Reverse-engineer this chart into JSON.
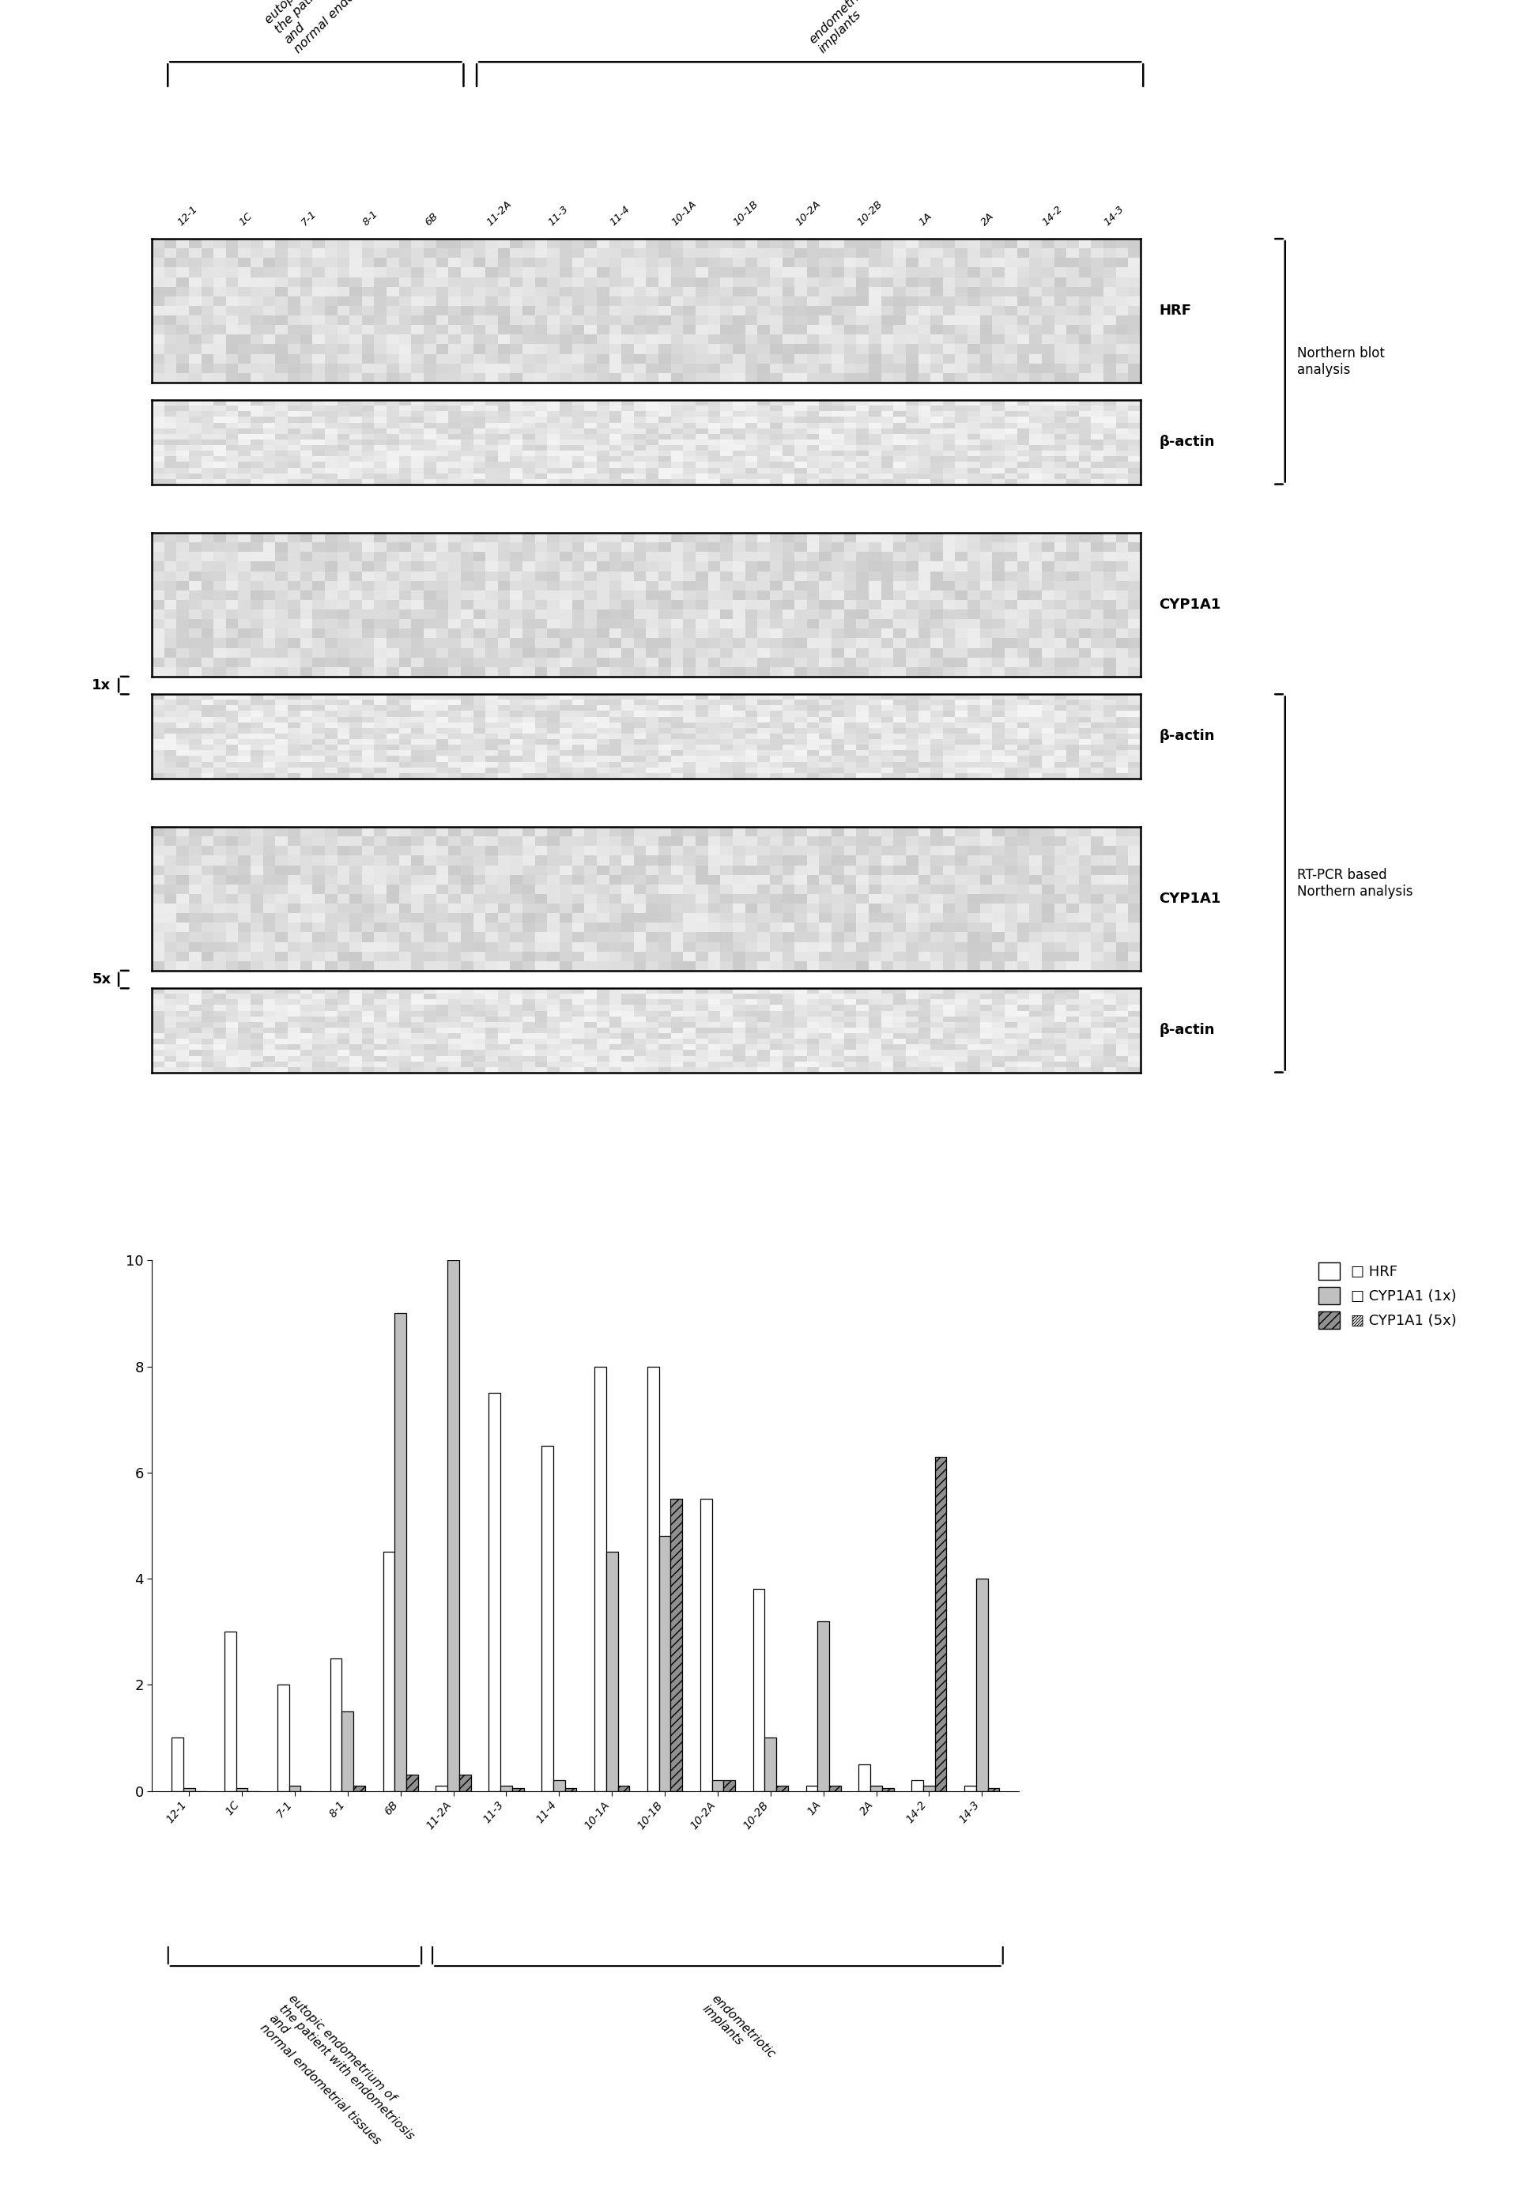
{
  "categories": [
    "12-1",
    "1C",
    "7-1",
    "8-1",
    "6B",
    "11-2A",
    "11-3",
    "11-4",
    "10-1A",
    "10-1B",
    "10-2A",
    "10-2B",
    "1A",
    "2A",
    "14-2",
    "14-3"
  ],
  "HRF": [
    1.0,
    3.0,
    2.0,
    2.5,
    4.5,
    0.1,
    7.5,
    6.5,
    8.0,
    8.0,
    5.5,
    3.8,
    0.1,
    0.5,
    0.2,
    0.1
  ],
  "CYP1A1_1x": [
    0.05,
    0.05,
    0.1,
    1.5,
    9.0,
    10.0,
    0.1,
    0.2,
    4.5,
    4.8,
    0.2,
    1.0,
    3.2,
    0.1,
    0.1,
    4.0
  ],
  "CYP1A1_5x": [
    0.0,
    0.0,
    0.0,
    0.1,
    0.3,
    0.3,
    0.05,
    0.05,
    0.1,
    5.5,
    0.2,
    0.1,
    0.1,
    0.05,
    6.3,
    0.05
  ],
  "ylim": [
    0,
    10
  ],
  "yticks": [
    0,
    2,
    4,
    6,
    8,
    10
  ],
  "label_top1": "eutopic endometrium of\nthe patient with endometriosis\nand\nnormal endometrial tissues",
  "label_top2": "endometriotic\nimplants",
  "label_bottom1": "eutopic endometrium of\nthe patient with endometriosis\nand\nnormal endometrial tissues",
  "label_bottom2": "endometriotic\nimplants",
  "panel_labels": [
    "HRF",
    "β-actin",
    "CYP1A1",
    "β-actin",
    "CYP1A1",
    "β-actin"
  ],
  "northern_blot_label": "Northern blot\nanalysis",
  "rtpcr_label": "RT-PCR based\nNorthern analysis",
  "side_1x": "1x",
  "side_5x": "5x",
  "legend_HRF": "□ HRF",
  "legend_CYP1x": "□ CYP1A1 (1x)",
  "legend_CYP5x": "▨ CYP1A1 (5x)",
  "background_color": "#ffffff"
}
